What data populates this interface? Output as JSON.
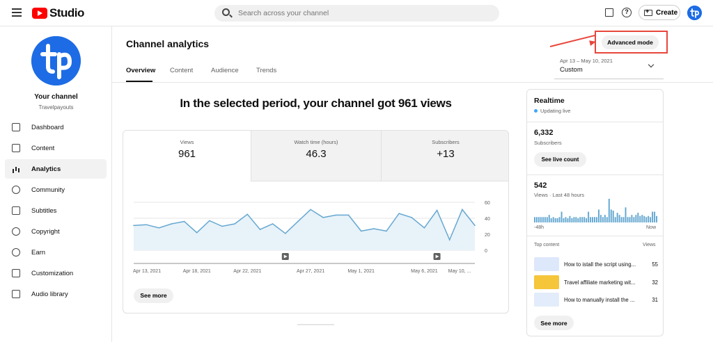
{
  "app": {
    "logo_text": "Studio"
  },
  "search": {
    "placeholder": "Search across your channel"
  },
  "header": {
    "create_label": "Create"
  },
  "sidebar": {
    "channel_name": "Your channel",
    "channel_handle": "Travelpayouts",
    "items": [
      {
        "label": "Dashboard",
        "icon": "dashboard-icon"
      },
      {
        "label": "Content",
        "icon": "content-icon"
      },
      {
        "label": "Analytics",
        "icon": "analytics-icon",
        "active": true
      },
      {
        "label": "Community",
        "icon": "community-icon"
      },
      {
        "label": "Subtitles",
        "icon": "subtitles-icon"
      },
      {
        "label": "Copyright",
        "icon": "copyright-icon"
      },
      {
        "label": "Earn",
        "icon": "earn-icon"
      },
      {
        "label": "Customization",
        "icon": "customization-icon"
      },
      {
        "label": "Audio library",
        "icon": "audio-library-icon"
      }
    ]
  },
  "page": {
    "title": "Channel analytics",
    "tabs": [
      "Overview",
      "Content",
      "Audience",
      "Trends"
    ],
    "advanced_mode_label": "Advanced mode",
    "date_range": "Apr 13 – May 10, 2021",
    "date_preset": "Custom",
    "headline": "In the selected period, your channel got 961 views"
  },
  "metrics": [
    {
      "label": "Views",
      "value": "961"
    },
    {
      "label": "Watch time (hours)",
      "value": "46.3"
    },
    {
      "label": "Subscribers",
      "value": "+13"
    }
  ],
  "see_more_label": "See more",
  "chart_data": {
    "type": "area",
    "ylim": [
      0,
      60
    ],
    "y_ticks": [
      "0",
      "20",
      "40",
      "60"
    ],
    "x_tick_labels": [
      "Apr 13, 2021",
      "Apr 18, 2021",
      "Apr 22, 2021",
      "Apr 27, 2021",
      "May 1, 2021",
      "May 6, 2021",
      "May 10, ..."
    ],
    "x_tick_index": [
      0,
      5,
      9,
      14,
      18,
      23,
      27
    ],
    "marker_index": [
      12,
      24
    ],
    "values": [
      31,
      32,
      28,
      33,
      36,
      22,
      37,
      30,
      33,
      45,
      26,
      33,
      21,
      36,
      51,
      41,
      44,
      44,
      24,
      27,
      24,
      46,
      41,
      28,
      50,
      13,
      51,
      31
    ],
    "color": "#65a8d1"
  },
  "realtime": {
    "title": "Realtime",
    "status": "Updating live",
    "subscribers_value": "6,332",
    "subscribers_label": "Subscribers",
    "see_live_count_label": "See live count",
    "views_value": "542",
    "views_label": "Views · Last 48 hours",
    "axis_left": "-48h",
    "axis_right": "Now",
    "bars": [
      5,
      5,
      5,
      5,
      5,
      5,
      5,
      7,
      4,
      5,
      4,
      4,
      5,
      10,
      4,
      5,
      4,
      6,
      4,
      5,
      5,
      4,
      5,
      5,
      5,
      4,
      10,
      5,
      5,
      5,
      5,
      12,
      7,
      5,
      7,
      5,
      22,
      12,
      11,
      5,
      9,
      7,
      5,
      5,
      14,
      5,
      5,
      7,
      5,
      7,
      9,
      6,
      7,
      6,
      5,
      6,
      5,
      10,
      10,
      6
    ],
    "top_content_label": "Top content",
    "top_content_views_label": "Views",
    "top_content": [
      {
        "title": "How to istall the script using...",
        "views": "55",
        "thumb": "#dde8fb"
      },
      {
        "title": "Travel affiliate marketing wit...",
        "views": "32",
        "thumb": "#f5c53a"
      },
      {
        "title": "How to manually install the ...",
        "views": "31",
        "thumb": "#e3ecfa"
      }
    ],
    "see_more_label": "See more"
  },
  "colors": {
    "accent": "#1d6ce5",
    "annotation": "#e8463b",
    "youtube_red": "#ff0000"
  }
}
